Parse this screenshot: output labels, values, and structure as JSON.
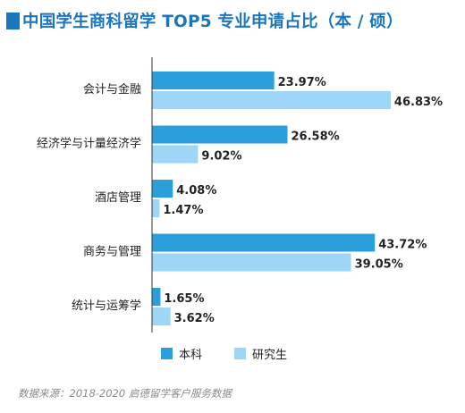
{
  "title": "中国学生商科留学 TOP5 专业申请占比（本 / 硕）",
  "source": "数据来源：2018-2020 启德留学客户服务数据",
  "colors": {
    "title": "#1d76bd",
    "undergrad": "#2a9fdc",
    "graduate": "#9dd6f6",
    "axis": "#333333"
  },
  "chart_data": {
    "type": "bar",
    "orientation": "horizontal",
    "categories": [
      "会计与金融",
      "经济学与计量经济学",
      "酒店管理",
      "商务与管理",
      "统计与运筹学"
    ],
    "series": [
      {
        "name": "本科",
        "values": [
          23.97,
          26.58,
          4.08,
          43.72,
          1.65
        ],
        "labels": [
          "23.97%",
          "26.58%",
          "4.08%",
          "43.72%",
          "1.65%"
        ]
      },
      {
        "name": "研究生",
        "values": [
          46.83,
          9.02,
          1.47,
          39.05,
          3.62
        ],
        "labels": [
          "46.83%",
          "9.02%",
          "1.47%",
          "39.05%",
          "3.62%"
        ]
      }
    ],
    "grid": false,
    "legend_position": "bottom"
  }
}
